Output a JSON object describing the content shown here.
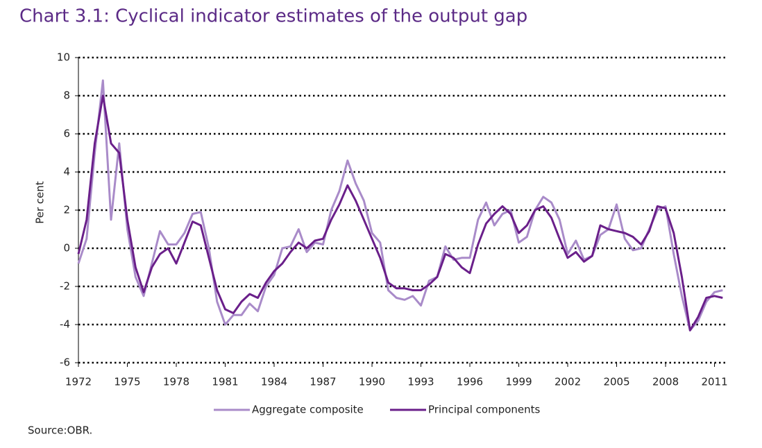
{
  "chart_data": {
    "type": "line",
    "title": "Chart 3.1: Cyclical indicator estimates of the output gap",
    "y_label": "Per cent",
    "source": "Source:OBR.",
    "x": [
      1972,
      1972.5,
      1973,
      1973.5,
      1974,
      1974.5,
      1975,
      1975.5,
      1976,
      1976.5,
      1977,
      1977.5,
      1978,
      1978.5,
      1979,
      1979.5,
      1980,
      1980.5,
      1981,
      1981.5,
      1982,
      1982.5,
      1983,
      1983.5,
      1984,
      1984.5,
      1985,
      1985.5,
      1986,
      1986.5,
      1987,
      1987.5,
      1988,
      1988.5,
      1989,
      1989.5,
      1990,
      1990.5,
      1991,
      1991.5,
      1992,
      1992.5,
      1993,
      1993.5,
      1994,
      1994.5,
      1995,
      1995.5,
      1996,
      1996.5,
      1997,
      1997.5,
      1998,
      1998.5,
      1999,
      1999.5,
      2000,
      2000.5,
      2001,
      2001.5,
      2002,
      2002.5,
      2003,
      2003.5,
      2004,
      2004.5,
      2005,
      2005.5,
      2006,
      2006.5,
      2007,
      2007.5,
      2008,
      2008.5,
      2009,
      2009.5,
      2010,
      2010.5,
      2011,
      2011.5
    ],
    "series": [
      {
        "name": "Aggregate composite",
        "color": "#a98bc9",
        "values": [
          -0.8,
          0.5,
          5.0,
          8.8,
          1.5,
          5.5,
          1.0,
          -1.5,
          -2.5,
          -0.8,
          0.9,
          0.2,
          0.2,
          0.8,
          1.8,
          1.9,
          0.0,
          -2.8,
          -4.0,
          -3.5,
          -3.5,
          -2.9,
          -3.3,
          -2.0,
          -1.4,
          0.0,
          0.1,
          1.0,
          -0.2,
          0.3,
          0.2,
          2.0,
          3.0,
          4.6,
          3.4,
          2.5,
          0.8,
          0.3,
          -2.2,
          -2.6,
          -2.7,
          -2.5,
          -3.0,
          -1.7,
          -1.5,
          0.1,
          -0.6,
          -0.5,
          -0.5,
          1.5,
          2.4,
          1.2,
          1.8,
          2.0,
          0.3,
          0.6,
          2.0,
          2.7,
          2.4,
          1.5,
          -0.3,
          0.4,
          -0.6,
          -0.4,
          0.7,
          1.0,
          2.3,
          0.5,
          -0.1,
          0.0,
          1.0,
          2.0,
          2.2,
          -0.3,
          -2.5,
          -4.3,
          -3.8,
          -2.8,
          -2.3,
          -2.2
        ]
      },
      {
        "name": "Principal components",
        "color": "#6a1f8a",
        "values": [
          -0.3,
          1.5,
          5.5,
          8.0,
          5.5,
          5.0,
          1.5,
          -1.0,
          -2.3,
          -1.0,
          -0.3,
          0.0,
          -0.8,
          0.3,
          1.4,
          1.2,
          -0.5,
          -2.2,
          -3.2,
          -3.4,
          -2.8,
          -2.4,
          -2.6,
          -1.8,
          -1.2,
          -0.8,
          -0.2,
          0.3,
          0.0,
          0.4,
          0.5,
          1.5,
          2.3,
          3.3,
          2.5,
          1.5,
          0.5,
          -0.5,
          -1.8,
          -2.1,
          -2.1,
          -2.2,
          -2.2,
          -1.9,
          -1.5,
          -0.3,
          -0.5,
          -1.0,
          -1.3,
          0.2,
          1.3,
          1.8,
          2.2,
          1.8,
          0.8,
          1.2,
          2.0,
          2.2,
          1.6,
          0.5,
          -0.5,
          -0.2,
          -0.7,
          -0.4,
          1.2,
          1.0,
          0.9,
          0.8,
          0.6,
          0.2,
          0.9,
          2.2,
          2.1,
          0.8,
          -1.5,
          -4.3,
          -3.6,
          -2.6,
          -2.5,
          -2.6
        ]
      }
    ],
    "xlim": [
      1972,
      2011.7
    ],
    "xticks": [
      1972,
      1975,
      1978,
      1981,
      1984,
      1987,
      1990,
      1993,
      1996,
      1999,
      2002,
      2005,
      2008,
      2011
    ],
    "ylim": [
      -6,
      10
    ],
    "yticks": [
      -6,
      -4,
      -2,
      0,
      2,
      4,
      6,
      8,
      10
    ],
    "grid": true,
    "legend": "bottom"
  }
}
